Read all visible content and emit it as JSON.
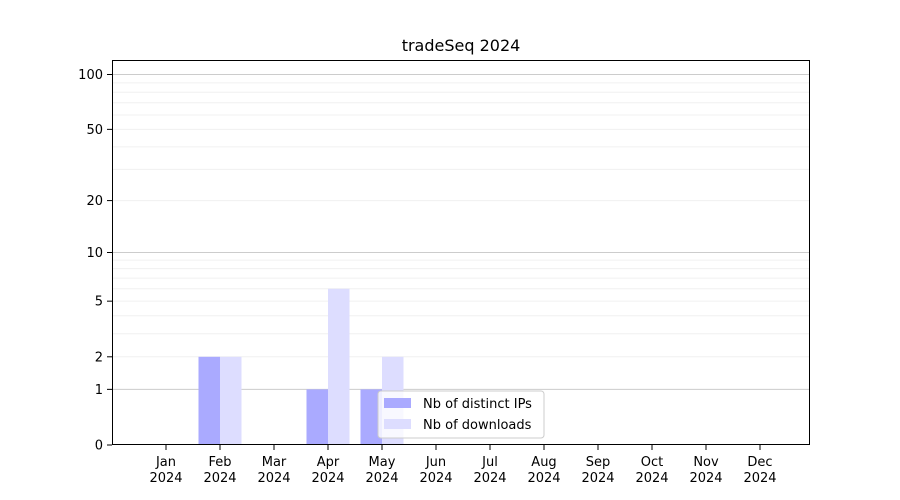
{
  "chart_data": {
    "type": "bar",
    "title": "tradeSeq 2024",
    "xlabel": "",
    "ylabel": "",
    "yscale": "log(1+y)",
    "ylim": [
      0,
      120
    ],
    "yticks": [
      0,
      1,
      2,
      5,
      10,
      20,
      50,
      100
    ],
    "grid": true,
    "legend_position": "bottom-center",
    "categories": [
      [
        "Jan",
        "2024"
      ],
      [
        "Feb",
        "2024"
      ],
      [
        "Mar",
        "2024"
      ],
      [
        "Apr",
        "2024"
      ],
      [
        "May",
        "2024"
      ],
      [
        "Jun",
        "2024"
      ],
      [
        "Jul",
        "2024"
      ],
      [
        "Aug",
        "2024"
      ],
      [
        "Sep",
        "2024"
      ],
      [
        "Oct",
        "2024"
      ],
      [
        "Nov",
        "2024"
      ],
      [
        "Dec",
        "2024"
      ]
    ],
    "series": [
      {
        "name": "Nb of distinct IPs",
        "color": "#aaaaff",
        "values": [
          0,
          2,
          0,
          1,
          1,
          0,
          0,
          0,
          0,
          0,
          0,
          0
        ]
      },
      {
        "name": "Nb of downloads",
        "color": "#ddddff",
        "values": [
          0,
          2,
          0,
          6,
          2,
          0,
          0,
          0,
          0,
          0,
          0,
          0
        ]
      }
    ]
  }
}
